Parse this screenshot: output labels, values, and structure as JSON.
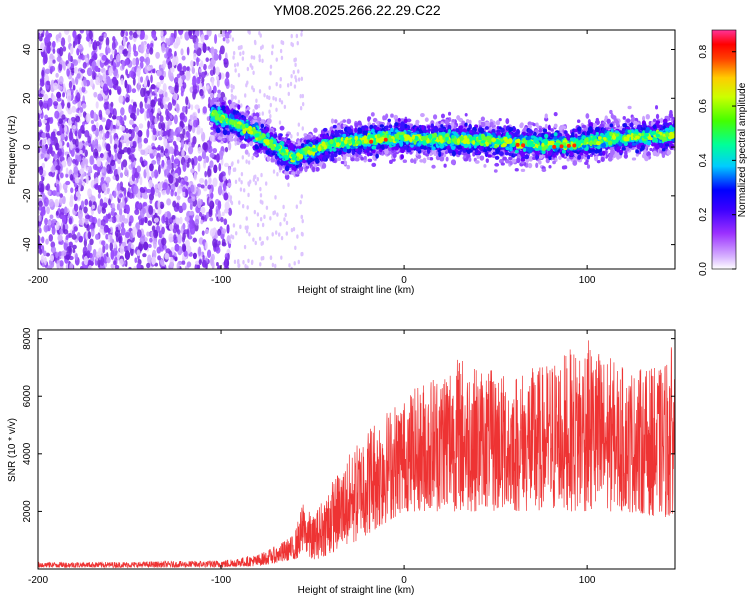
{
  "title": "YM08.2025.266.22.29.C22",
  "chart_data": [
    {
      "type": "heatmap",
      "name": "spectrogram",
      "xlabel": "Height of straight line (km)",
      "ylabel": "Frequency (Hz)",
      "xlim": [
        -200,
        148
      ],
      "ylim": [
        -50,
        48
      ],
      "xticks": [
        -200,
        -100,
        0,
        100
      ],
      "xtick_labels": [
        "-200",
        "-100",
        "0",
        "100"
      ],
      "yticks": [
        -40,
        -20,
        0,
        20,
        40
      ],
      "ytick_labels": [
        "-40",
        "-20",
        "0",
        "20",
        "40"
      ],
      "ridge": {
        "x": [
          -105,
          -100,
          -90,
          -80,
          -70,
          -60,
          -55,
          -50,
          -45,
          -40,
          -30,
          -20,
          -10,
          0,
          20,
          40,
          60,
          80,
          100,
          120,
          148
        ],
        "frequency": [
          14,
          12,
          9,
          5,
          0,
          -5,
          -2,
          -1,
          0,
          1,
          2,
          3,
          4,
          4,
          3,
          3,
          2,
          1,
          2,
          4,
          5
        ]
      },
      "noise_region_x": [
        -200,
        -95
      ],
      "colorbar": {
        "label": "Normalized spectral amplitude",
        "range": [
          0,
          0.88
        ],
        "ticks": [
          0.0,
          0.2,
          0.4,
          0.6,
          0.8
        ],
        "tick_labels": [
          "0.0",
          "0.2",
          "0.4",
          "0.6",
          "0.8"
        ],
        "colors": [
          "#ffffff",
          "#c9a0ff",
          "#8a2be2",
          "#0000ff",
          "#00e0ff",
          "#00ff66",
          "#80ff00",
          "#ffff00",
          "#ff8000",
          "#ff0000",
          "#ff3399"
        ]
      }
    },
    {
      "type": "line",
      "name": "snr",
      "xlabel": "Height of straight line (km)",
      "ylabel": "SNR (10 * v/v)",
      "xlim": [
        -200,
        148
      ],
      "ylim": [
        0,
        8300
      ],
      "xticks": [
        -200,
        -100,
        0,
        100
      ],
      "xtick_labels": [
        "-200",
        "-100",
        "0",
        "100"
      ],
      "yticks": [
        2000,
        4000,
        6000,
        8000
      ],
      "ytick_labels": [
        "2000",
        "4000",
        "6000",
        "8000"
      ],
      "color": "#ee3333",
      "envelope": {
        "x": [
          -200,
          -150,
          -100,
          -80,
          -70,
          -60,
          -55,
          -50,
          -40,
          -30,
          -20,
          -10,
          0,
          10,
          20,
          30,
          40,
          60,
          80,
          100,
          120,
          140,
          148
        ],
        "low": [
          50,
          50,
          50,
          100,
          200,
          300,
          500,
          300,
          500,
          800,
          1200,
          1600,
          2000,
          2000,
          2000,
          2000,
          2000,
          2000,
          2000,
          2000,
          2000,
          1800,
          1800
        ],
        "high": [
          250,
          250,
          300,
          500,
          800,
          1200,
          2400,
          1800,
          3000,
          4000,
          5000,
          5500,
          6000,
          6500,
          7000,
          7500,
          7000,
          6800,
          7200,
          8000,
          7000,
          7000,
          8000
        ]
      }
    }
  ]
}
